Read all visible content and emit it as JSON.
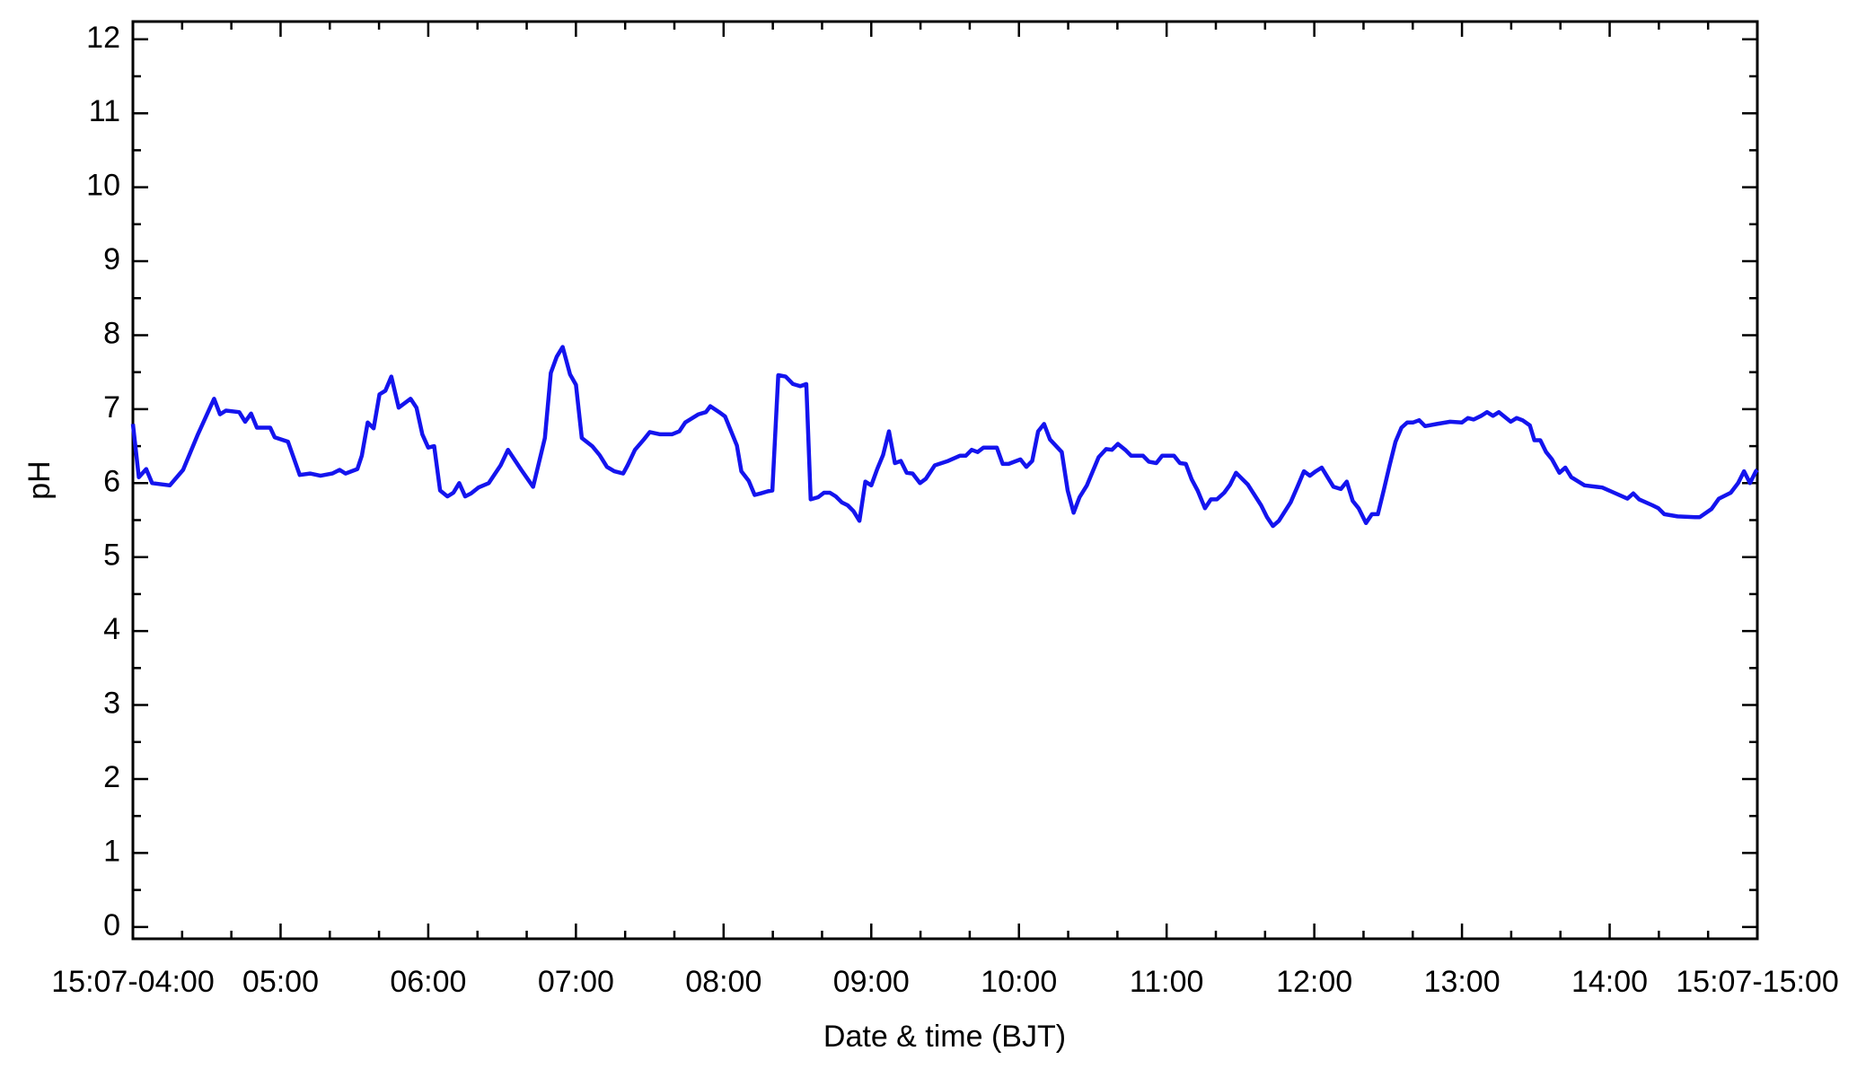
{
  "chart_data": {
    "type": "line",
    "xlabel": "Date & time (BJT)",
    "ylabel": "pH",
    "color": "#1414ee",
    "xlim": [
      4,
      15
    ],
    "ylim": [
      -0.16,
      12.24
    ],
    "xticks": [
      {
        "value": 4,
        "label": "15:07-04:00"
      },
      {
        "value": 5,
        "label": "05:00"
      },
      {
        "value": 6,
        "label": "06:00"
      },
      {
        "value": 7,
        "label": "07:00"
      },
      {
        "value": 8,
        "label": "08:00"
      },
      {
        "value": 9,
        "label": "09:00"
      },
      {
        "value": 10,
        "label": "10:00"
      },
      {
        "value": 11,
        "label": "11:00"
      },
      {
        "value": 12,
        "label": "12:00"
      },
      {
        "value": 13,
        "label": "13:00"
      },
      {
        "value": 14,
        "label": "14:00"
      },
      {
        "value": 15,
        "label": "15:07-15:00"
      }
    ],
    "yticks": [
      0,
      1,
      2,
      3,
      4,
      5,
      6,
      7,
      8,
      9,
      10,
      11,
      12
    ],
    "x": [
      4.0,
      4.04,
      4.09,
      4.13,
      4.25,
      4.34,
      4.44,
      4.55,
      4.59,
      4.63,
      4.72,
      4.76,
      4.8,
      4.84,
      4.93,
      4.96,
      5.05,
      5.13,
      5.2,
      5.27,
      5.35,
      5.4,
      5.44,
      5.52,
      5.55,
      5.59,
      5.63,
      5.67,
      5.71,
      5.75,
      5.8,
      5.88,
      5.92,
      5.96,
      6.0,
      6.04,
      6.08,
      6.13,
      6.17,
      6.21,
      6.25,
      6.29,
      6.34,
      6.41,
      6.49,
      6.54,
      6.63,
      6.71,
      6.79,
      6.83,
      6.87,
      6.91,
      6.96,
      7.0,
      7.04,
      7.11,
      7.16,
      7.21,
      7.26,
      7.32,
      7.35,
      7.4,
      7.46,
      7.5,
      7.57,
      7.65,
      7.7,
      7.74,
      7.83,
      7.88,
      7.91,
      7.97,
      8.01,
      8.09,
      8.12,
      8.17,
      8.21,
      8.25,
      8.3,
      8.33,
      8.37,
      8.42,
      8.47,
      8.52,
      8.56,
      8.59,
      8.64,
      8.68,
      8.72,
      8.76,
      8.8,
      8.84,
      8.88,
      8.92,
      8.96,
      9.0,
      9.04,
      9.08,
      9.12,
      9.16,
      9.2,
      9.24,
      9.28,
      9.33,
      9.37,
      9.43,
      9.52,
      9.6,
      9.64,
      9.68,
      9.72,
      9.76,
      9.85,
      9.89,
      9.93,
      10.01,
      10.05,
      10.09,
      10.13,
      10.17,
      10.21,
      10.29,
      10.33,
      10.37,
      10.41,
      10.46,
      10.54,
      10.59,
      10.63,
      10.67,
      10.72,
      10.76,
      10.84,
      10.88,
      10.93,
      10.97,
      11.05,
      11.09,
      11.13,
      11.17,
      11.21,
      11.26,
      11.3,
      11.34,
      11.39,
      11.43,
      11.47,
      11.55,
      11.64,
      11.68,
      11.72,
      11.76,
      11.84,
      11.89,
      11.93,
      11.97,
      12.01,
      12.05,
      12.09,
      12.13,
      12.18,
      12.22,
      12.26,
      12.3,
      12.35,
      12.39,
      12.43,
      12.47,
      12.51,
      12.55,
      12.59,
      12.63,
      12.67,
      12.71,
      12.75,
      12.83,
      12.92,
      13.0,
      13.04,
      13.08,
      13.13,
      13.17,
      13.21,
      13.25,
      13.33,
      13.37,
      13.41,
      13.46,
      13.49,
      13.53,
      13.57,
      13.61,
      13.66,
      13.7,
      13.74,
      13.83,
      13.95,
      14.03,
      14.12,
      14.16,
      14.2,
      14.29,
      14.33,
      14.37,
      14.46,
      14.58,
      14.61,
      14.69,
      14.74,
      14.82,
      14.87,
      14.91,
      14.95,
      14.99,
      15.0
    ],
    "values": [
      6.8,
      6.08,
      6.19,
      6.0,
      5.97,
      6.18,
      6.66,
      7.14,
      6.93,
      6.98,
      6.96,
      6.83,
      6.94,
      6.75,
      6.75,
      6.62,
      6.56,
      6.11,
      6.13,
      6.1,
      6.13,
      6.18,
      6.13,
      6.19,
      6.37,
      6.82,
      6.74,
      7.2,
      7.25,
      7.44,
      7.02,
      7.14,
      7.02,
      6.66,
      6.48,
      6.5,
      5.9,
      5.82,
      5.87,
      6.0,
      5.82,
      5.86,
      5.94,
      6.0,
      6.24,
      6.45,
      6.18,
      5.95,
      6.61,
      7.49,
      7.71,
      7.84,
      7.47,
      7.33,
      6.61,
      6.5,
      6.38,
      6.22,
      6.16,
      6.13,
      6.24,
      6.45,
      6.59,
      6.69,
      6.66,
      6.66,
      6.7,
      6.82,
      6.93,
      6.96,
      7.04,
      6.96,
      6.9,
      6.51,
      6.16,
      6.03,
      5.84,
      5.86,
      5.89,
      5.9,
      7.46,
      7.44,
      7.34,
      7.31,
      7.34,
      5.78,
      5.81,
      5.87,
      5.87,
      5.82,
      5.74,
      5.7,
      5.62,
      5.49,
      6.02,
      5.97,
      6.19,
      6.38,
      6.7,
      6.27,
      6.3,
      6.14,
      6.13,
      6.0,
      6.06,
      6.24,
      6.3,
      6.37,
      6.37,
      6.45,
      6.42,
      6.48,
      6.48,
      6.26,
      6.26,
      6.32,
      6.22,
      6.3,
      6.7,
      6.8,
      6.59,
      6.42,
      5.9,
      5.6,
      5.81,
      5.97,
      6.35,
      6.46,
      6.45,
      6.53,
      6.45,
      6.37,
      6.37,
      6.29,
      6.27,
      6.37,
      6.37,
      6.27,
      6.26,
      6.05,
      5.9,
      5.66,
      5.78,
      5.78,
      5.87,
      5.98,
      6.14,
      5.98,
      5.7,
      5.54,
      5.42,
      5.49,
      5.74,
      5.97,
      6.16,
      6.1,
      6.16,
      6.21,
      6.08,
      5.95,
      5.92,
      6.02,
      5.76,
      5.66,
      5.46,
      5.58,
      5.58,
      5.9,
      6.24,
      6.56,
      6.75,
      6.82,
      6.82,
      6.85,
      6.77,
      6.8,
      6.83,
      6.82,
      6.88,
      6.86,
      6.91,
      6.96,
      6.91,
      6.96,
      6.83,
      6.88,
      6.85,
      6.78,
      6.58,
      6.58,
      6.42,
      6.32,
      6.14,
      6.21,
      6.08,
      5.97,
      5.94,
      5.87,
      5.79,
      5.86,
      5.78,
      5.7,
      5.66,
      5.58,
      5.55,
      5.54,
      5.54,
      5.65,
      5.79,
      5.87,
      6.0,
      6.16,
      6.0,
      6.16,
      6.18
    ]
  }
}
